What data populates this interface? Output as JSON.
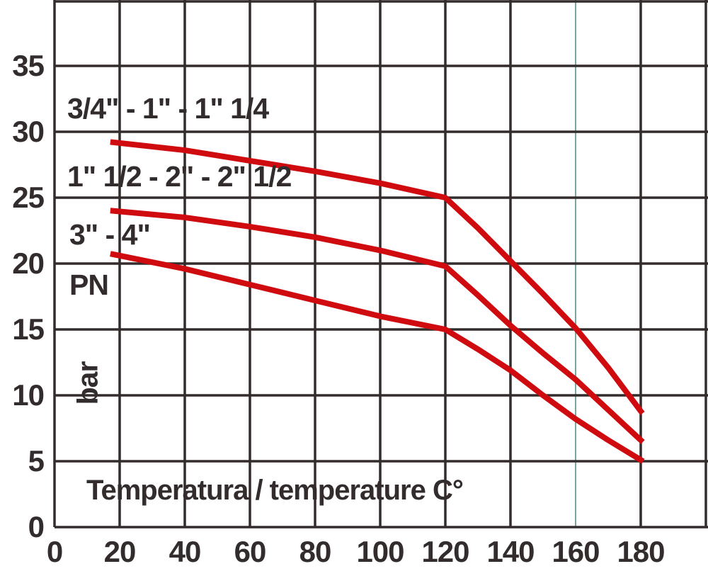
{
  "chart_data": {
    "type": "line",
    "title": "",
    "xlabel": "Temperatura / temperature C°",
    "pn_label": "PN",
    "unit_label": "bar",
    "x_ticks": [
      0,
      20,
      40,
      60,
      80,
      100,
      120,
      140,
      160,
      180
    ],
    "y_ticks": [
      0,
      5,
      10,
      15,
      20,
      25,
      30,
      35
    ],
    "xlim": [
      0,
      200
    ],
    "ylim": [
      0,
      40
    ],
    "x_grid_step": 20,
    "y_grid_step": 5,
    "grid": true,
    "legend_position": "inline-left-above-each-curve",
    "highlight_gridline_x": 160,
    "colors": {
      "curve": "#cf0b10",
      "grid": "#332c2d",
      "text": "#332c2d",
      "highlight_gridline": "#7da5a0",
      "background": "#ffffff"
    },
    "series": [
      {
        "name": "3/4\" - 1\" - 1\" 1/4",
        "points": [
          [
            18,
            29.2
          ],
          [
            40,
            28.6
          ],
          [
            60,
            27.8
          ],
          [
            80,
            27.0
          ],
          [
            100,
            26.1
          ],
          [
            120,
            25.0
          ],
          [
            130,
            22.7
          ],
          [
            140,
            20.2
          ],
          [
            150,
            17.7
          ],
          [
            160,
            15.1
          ],
          [
            170,
            12.1
          ],
          [
            180,
            8.8
          ]
        ]
      },
      {
        "name": "1\" 1/2 - 2\" - 2\" 1/2",
        "points": [
          [
            18,
            24.0
          ],
          [
            40,
            23.5
          ],
          [
            60,
            22.8
          ],
          [
            80,
            22.0
          ],
          [
            100,
            21.0
          ],
          [
            120,
            19.8
          ],
          [
            130,
            17.6
          ],
          [
            140,
            15.3
          ],
          [
            150,
            13.2
          ],
          [
            160,
            11.2
          ],
          [
            170,
            8.9
          ],
          [
            180,
            6.6
          ]
        ]
      },
      {
        "name": "3\" - 4\"",
        "points": [
          [
            18,
            20.7
          ],
          [
            40,
            19.6
          ],
          [
            60,
            18.4
          ],
          [
            80,
            17.2
          ],
          [
            100,
            16.0
          ],
          [
            120,
            15.0
          ],
          [
            130,
            13.5
          ],
          [
            140,
            11.9
          ],
          [
            150,
            10.0
          ],
          [
            160,
            8.2
          ],
          [
            170,
            6.6
          ],
          [
            180,
            5.1
          ]
        ]
      }
    ]
  }
}
